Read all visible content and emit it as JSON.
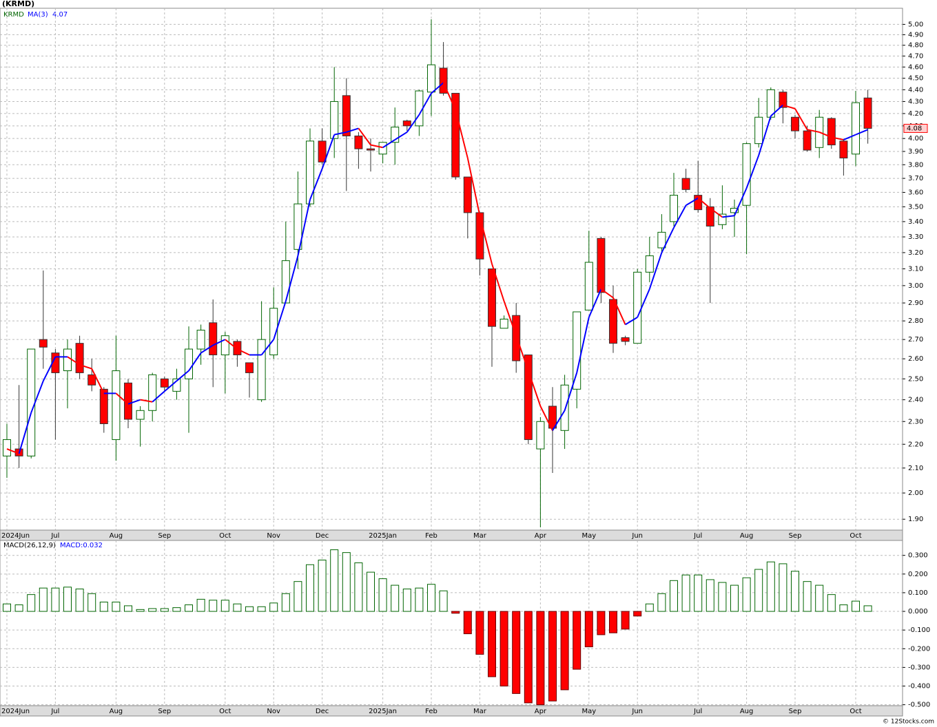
{
  "chart_data": [
    {
      "type": "candlestick",
      "title": "(KRMD)",
      "symbol": "KRMD",
      "categories": [
        "2024Jun",
        null,
        null,
        null,
        "Jul",
        null,
        null,
        null,
        null,
        "Aug",
        null,
        null,
        null,
        "Sep",
        null,
        null,
        null,
        null,
        "Oct",
        null,
        null,
        null,
        "Nov",
        null,
        null,
        null,
        "Dec",
        null,
        null,
        null,
        null,
        "2025Jan",
        null,
        null,
        null,
        "Feb",
        null,
        null,
        null,
        "Mar",
        null,
        null,
        null,
        null,
        "Apr",
        null,
        null,
        null,
        "May",
        null,
        null,
        null,
        "Jun",
        null,
        null,
        null,
        null,
        "Jul",
        null,
        null,
        null,
        "Aug",
        null,
        null,
        null,
        "Sep",
        null,
        null,
        null,
        null,
        "Oct",
        null
      ],
      "open": [
        2.15,
        2.18,
        2.15,
        2.7,
        2.63,
        2.54,
        2.68,
        2.52,
        2.45,
        2.22,
        2.48,
        2.31,
        2.35,
        2.5,
        2.44,
        2.5,
        2.65,
        2.79,
        2.62,
        2.69,
        2.58,
        2.4,
        2.62,
        2.9,
        3.22,
        3.52,
        3.98,
        4.0,
        4.35,
        4.02,
        3.92,
        3.88,
        3.97,
        4.14,
        4.1,
        4.38,
        4.59,
        4.37,
        3.71,
        3.46,
        3.1,
        2.76,
        2.83,
        2.62,
        2.18,
        2.37,
        2.26,
        2.45,
        2.86,
        3.29,
        2.92,
        2.71,
        2.68,
        3.08,
        3.23,
        3.4,
        3.7,
        3.58,
        3.5,
        3.38,
        3.46,
        3.51,
        3.96,
        4.17,
        4.38,
        4.17,
        4.06,
        3.93,
        4.16,
        3.98,
        3.88,
        4.33
      ],
      "high": [
        2.29,
        2.47,
        2.65,
        3.09,
        2.65,
        2.7,
        2.72,
        2.6,
        2.46,
        2.72,
        2.5,
        2.37,
        2.53,
        2.51,
        2.55,
        2.77,
        2.78,
        2.92,
        2.74,
        2.7,
        2.58,
        2.91,
        2.99,
        3.4,
        3.75,
        4.08,
        4.08,
        4.6,
        4.5,
        4.05,
        4.0,
        3.97,
        4.25,
        4.15,
        4.4,
        5.05,
        4.83,
        4.37,
        3.71,
        3.46,
        3.1,
        2.83,
        2.9,
        2.62,
        2.32,
        2.46,
        2.52,
        2.85,
        3.34,
        3.3,
        3.0,
        2.72,
        3.1,
        3.3,
        3.45,
        3.74,
        3.77,
        3.83,
        3.56,
        3.65,
        3.55,
        3.97,
        4.33,
        4.42,
        4.4,
        4.19,
        4.1,
        4.23,
        4.17,
        3.99,
        4.39,
        4.4
      ],
      "low": [
        2.06,
        2.1,
        2.14,
        2.55,
        2.22,
        2.36,
        2.5,
        2.44,
        2.25,
        2.13,
        2.27,
        2.19,
        2.3,
        2.44,
        2.4,
        2.25,
        2.57,
        2.46,
        2.43,
        2.56,
        2.41,
        2.39,
        2.6,
        2.9,
        3.1,
        3.5,
        3.8,
        3.85,
        3.61,
        3.77,
        3.75,
        3.81,
        3.8,
        4.06,
        4.02,
        4.18,
        4.35,
        3.69,
        3.29,
        3.06,
        2.56,
        2.76,
        2.53,
        2.2,
        1.87,
        2.08,
        2.18,
        2.36,
        2.86,
        2.9,
        2.63,
        2.67,
        2.68,
        3.02,
        3.2,
        3.37,
        3.6,
        3.46,
        2.9,
        3.35,
        3.3,
        3.19,
        3.93,
        4.15,
        4.12,
        4.0,
        3.9,
        3.85,
        3.92,
        3.72,
        3.79,
        3.96
      ],
      "close": [
        2.22,
        2.15,
        2.65,
        2.66,
        2.53,
        2.65,
        2.53,
        2.47,
        2.29,
        2.54,
        2.31,
        2.35,
        2.52,
        2.46,
        2.5,
        2.65,
        2.75,
        2.62,
        2.72,
        2.62,
        2.53,
        2.7,
        2.87,
        3.15,
        3.52,
        3.98,
        3.82,
        4.3,
        4.02,
        3.92,
        3.91,
        3.97,
        4.09,
        4.1,
        4.39,
        4.62,
        4.37,
        3.71,
        3.46,
        3.16,
        2.77,
        2.81,
        2.59,
        2.22,
        2.3,
        2.27,
        2.47,
        2.85,
        3.14,
        2.96,
        2.68,
        2.69,
        3.08,
        3.18,
        3.33,
        3.58,
        3.62,
        3.48,
        3.37,
        3.45,
        3.49,
        3.96,
        4.17,
        4.4,
        4.25,
        4.06,
        3.91,
        4.17,
        3.95,
        3.85,
        4.29,
        4.08
      ],
      "last_close_label": "4.08",
      "up_color": "#006400",
      "down_color": "#ff0000",
      "ma": {
        "name": "MA(3)",
        "last_label": "4.07",
        "up_color": "#0000ff",
        "down_color": "#ff0000",
        "values": [
          2.18,
          2.16,
          2.34,
          2.49,
          2.61,
          2.61,
          2.57,
          2.55,
          2.43,
          2.43,
          2.38,
          2.4,
          2.39,
          2.44,
          2.49,
          2.54,
          2.63,
          2.67,
          2.7,
          2.65,
          2.62,
          2.62,
          2.7,
          2.91,
          3.18,
          3.55,
          3.77,
          4.03,
          4.05,
          4.08,
          3.95,
          3.93,
          3.99,
          4.05,
          4.19,
          4.37,
          4.46,
          4.23,
          3.85,
          3.44,
          3.13,
          2.91,
          2.72,
          2.54,
          2.37,
          2.26,
          2.35,
          2.53,
          2.82,
          2.98,
          2.93,
          2.78,
          2.82,
          2.98,
          3.2,
          3.36,
          3.51,
          3.56,
          3.49,
          3.43,
          3.44,
          3.63,
          3.87,
          4.18,
          4.27,
          4.24,
          4.07,
          4.05,
          4.01,
          3.99,
          4.03,
          4.07
        ]
      },
      "ylog": true,
      "ylim": [
        1.86,
        5.16
      ],
      "grid": true,
      "yticks": [
        {
          "value": 1.9,
          "label": "1.90"
        },
        {
          "value": 2,
          "label": "2.00"
        },
        {
          "value": 2.1,
          "label": "2.10"
        },
        {
          "value": 2.2,
          "label": "2.20"
        },
        {
          "value": 2.3,
          "label": "2.30"
        },
        {
          "value": 2.4,
          "label": "2.40"
        },
        {
          "value": 2.5,
          "label": "2.50"
        },
        {
          "value": 2.6,
          "label": "2.60"
        },
        {
          "value": 2.7,
          "label": "2.70"
        },
        {
          "value": 2.8,
          "label": "2.80"
        },
        {
          "value": 2.9,
          "label": "2.90"
        },
        {
          "value": 3,
          "label": "3.00"
        },
        {
          "value": 3.1,
          "label": "3.10"
        },
        {
          "value": 3.2,
          "label": "3.20"
        },
        {
          "value": 3.3,
          "label": "3.30"
        },
        {
          "value": 3.4,
          "label": "3.40"
        },
        {
          "value": 3.5,
          "label": "3.50"
        },
        {
          "value": 3.6,
          "label": "3.60"
        },
        {
          "value": 3.7,
          "label": "3.70"
        },
        {
          "value": 3.8,
          "label": "3.80"
        },
        {
          "value": 3.9,
          "label": "3.90"
        },
        {
          "value": 4,
          "label": "4.00"
        },
        {
          "value": 4.1,
          "label": "4.10"
        },
        {
          "value": 4.2,
          "label": "4.20"
        },
        {
          "value": 4.3,
          "label": "4.30"
        },
        {
          "value": 4.4,
          "label": "4.40"
        },
        {
          "value": 4.5,
          "label": "4.50"
        },
        {
          "value": 4.6,
          "label": "4.60"
        },
        {
          "value": 4.7,
          "label": "4.70"
        },
        {
          "value": 4.8,
          "label": "4.80"
        },
        {
          "value": 4.9,
          "label": "4.90"
        },
        {
          "value": 5,
          "label": "5.00"
        }
      ]
    },
    {
      "type": "bar",
      "title": "MACD(26,12,9)",
      "value_label": "MACD:0.032",
      "values": [
        0.04,
        0.035,
        0.09,
        0.125,
        0.125,
        0.13,
        0.12,
        0.095,
        0.05,
        0.05,
        0.03,
        0.01,
        0.015,
        0.015,
        0.02,
        0.035,
        0.065,
        0.06,
        0.06,
        0.04,
        0.025,
        0.025,
        0.045,
        0.095,
        0.16,
        0.25,
        0.275,
        0.33,
        0.315,
        0.26,
        0.21,
        0.175,
        0.14,
        0.12,
        0.125,
        0.145,
        0.11,
        -0.01,
        -0.12,
        -0.23,
        -0.35,
        -0.4,
        -0.44,
        -0.49,
        -0.5,
        -0.48,
        -0.42,
        -0.31,
        -0.19,
        -0.125,
        -0.115,
        -0.095,
        -0.025,
        0.04,
        0.095,
        0.165,
        0.195,
        0.195,
        0.17,
        0.155,
        0.14,
        0.18,
        0.225,
        0.265,
        0.255,
        0.215,
        0.16,
        0.14,
        0.09,
        0.035,
        0.055,
        0.03
      ],
      "pos_color": "#006400",
      "neg_color": "#ff0000",
      "ylim": [
        -0.505,
        0.38
      ],
      "grid": true,
      "yticks": [
        {
          "value": -0.5,
          "label": "-0.500"
        },
        {
          "value": -0.4,
          "label": "-0.400"
        },
        {
          "value": -0.3,
          "label": "-0.300"
        },
        {
          "value": -0.2,
          "label": "-0.200"
        },
        {
          "value": -0.1,
          "label": "-0.100"
        },
        {
          "value": 0,
          "label": "0.000"
        },
        {
          "value": 0.1,
          "label": "0.100"
        },
        {
          "value": 0.2,
          "label": "0.200"
        },
        {
          "value": 0.3,
          "label": "0.300"
        }
      ]
    }
  ],
  "footer": "© 12Stocks.com"
}
